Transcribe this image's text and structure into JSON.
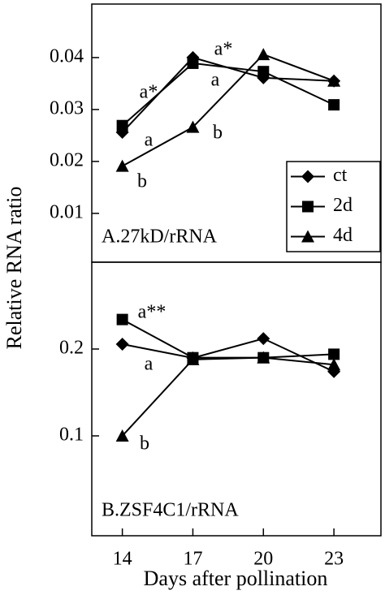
{
  "chart_data": [
    {
      "type": "line",
      "title": "A.27kD/rRNA",
      "ylabel": "Relative RNA ratio",
      "x": [
        14,
        17,
        20,
        23
      ],
      "xlim": [
        12.7,
        25
      ],
      "ylim": [
        0.0006,
        0.0503
      ],
      "yticks": [
        0.01,
        0.02,
        0.03,
        0.04
      ],
      "legend": "lower right",
      "series": [
        {
          "name": "ct",
          "color": "#000000",
          "marker": "diamond",
          "values": [
            0.0256,
            0.04,
            0.0361,
            0.0355
          ]
        },
        {
          "name": "2d",
          "color": "#000000",
          "marker": "square",
          "values": [
            0.0269,
            0.0389,
            0.0373,
            0.0309
          ]
        },
        {
          "name": "4d",
          "color": "#000000",
          "marker": "triangle",
          "values": [
            0.0191,
            0.0266,
            0.0406,
            0.0355
          ]
        }
      ],
      "annotations": [
        "a*",
        "a*",
        "a",
        "a",
        "b",
        "b"
      ]
    },
    {
      "type": "line",
      "title": "B.ZSF4C1/rRNA",
      "xlabel": "Days after pollination",
      "x": [
        14,
        17,
        20,
        23
      ],
      "xlim": [
        12.7,
        25
      ],
      "xticks": [
        14,
        17,
        20,
        23
      ],
      "ylim": [
        -0.015,
        0.3
      ],
      "yticks": [
        0.1,
        0.2
      ],
      "series": [
        {
          "color": "#000000",
          "marker": "diamond",
          "values": [
            0.2056,
            0.1897,
            0.212,
            0.174
          ]
        },
        {
          "color": "#000000",
          "marker": "square",
          "values": [
            0.234,
            0.19,
            0.19,
            0.194
          ]
        },
        {
          "color": "#000000",
          "marker": "triangle",
          "values": [
            0.1,
            0.188,
            0.19,
            0.182
          ]
        }
      ],
      "annotations": [
        "a**",
        "a",
        "b"
      ]
    }
  ]
}
